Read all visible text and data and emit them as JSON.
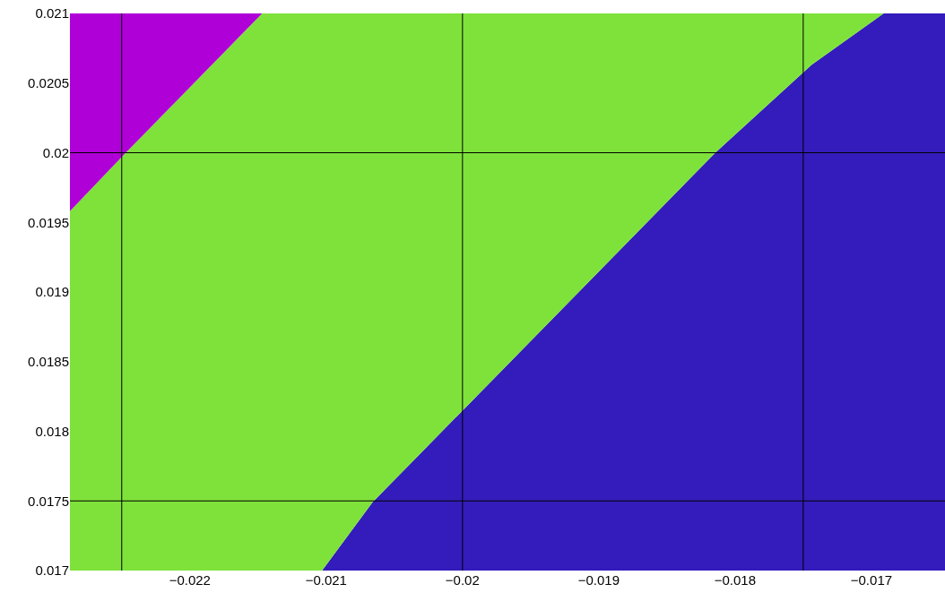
{
  "chart_data": {
    "type": "area",
    "x": [
      -0.02288,
      -0.02247,
      -0.02147,
      -0.02103,
      -0.02066,
      -0.018145,
      -0.01744,
      -0.01691,
      -0.01646
    ],
    "series": [
      {
        "color": "#331cbb",
        "values": [
          0.017,
          0.017,
          0.017,
          0.017,
          0.01749,
          0.02,
          0.02063,
          0.021,
          0.021
        ]
      },
      {
        "color": "#7ee23a",
        "values": [
          0.01958,
          0.02,
          0.021,
          0.021,
          0.021,
          0.021,
          0.021,
          0.021,
          0.021
        ]
      },
      {
        "color": "#b000d8",
        "values": [
          0.021,
          0.021,
          0.021,
          0.021,
          0.021,
          0.021,
          0.021,
          0.021,
          0.021
        ]
      }
    ],
    "xlim": [
      -0.02288,
      -0.01646
    ],
    "ylim": [
      0.017,
      0.021
    ],
    "xticks": [
      {
        "value": -0.022,
        "label": "−0.022"
      },
      {
        "value": -0.021,
        "label": "−0.021"
      },
      {
        "value": -0.02,
        "label": "−0.02"
      },
      {
        "value": -0.019,
        "label": "−0.019"
      },
      {
        "value": -0.018,
        "label": "−0.018"
      },
      {
        "value": -0.017,
        "label": "−0.017"
      }
    ],
    "yticks": [
      0.017,
      0.0175,
      0.018,
      0.0185,
      0.019,
      0.0195,
      0.02,
      0.0205,
      0.021
    ],
    "ref_lines": [
      {
        "axis": "x",
        "value": -0.0225,
        "color": "#000000"
      },
      {
        "axis": "x",
        "value": -0.02,
        "color": "#000000"
      },
      {
        "axis": "x",
        "value": -0.0175,
        "color": "#000000"
      },
      {
        "axis": "y",
        "value": 0.0175,
        "color": "#000000"
      },
      {
        "axis": "y",
        "value": 0.02,
        "color": "#000000"
      }
    ]
  }
}
